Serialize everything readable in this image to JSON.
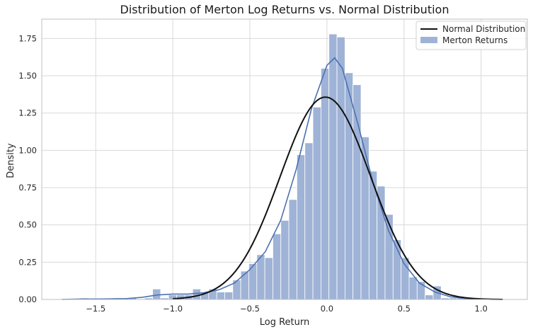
{
  "chart_data": {
    "type": "bar",
    "title": "Distribution of Merton Log Returns vs. Normal Distribution",
    "xlabel": "Log Return",
    "ylabel": "Density",
    "xlim": [
      -1.85,
      1.3
    ],
    "ylim": [
      0,
      1.88
    ],
    "grid": true,
    "xticks": [
      -1.5,
      -1.0,
      -0.5,
      0.0,
      0.5,
      1.0
    ],
    "xtick_labels": [
      "−1.5",
      "−1.0",
      "−0.5",
      "0.0",
      "0.5",
      "1.0"
    ],
    "yticks": [
      0.0,
      0.25,
      0.5,
      0.75,
      1.0,
      1.25,
      1.5,
      1.75
    ],
    "ytick_labels": [
      "0.00",
      "0.25",
      "0.50",
      "0.75",
      "1.00",
      "1.25",
      "1.50",
      "1.75"
    ],
    "legend": {
      "position": "top-right",
      "entries": [
        {
          "name": "Normal Distribution",
          "kind": "line",
          "color": "#111111"
        },
        {
          "name": "Merton Returns",
          "kind": "patch",
          "color": "#9fb3d7"
        }
      ]
    },
    "histogram": {
      "name": "Merton Returns",
      "color": "#9fb3d7",
      "bin_width": 0.052,
      "bins": [
        {
          "x": -1.573,
          "y": 0.01
        },
        {
          "x": -1.521,
          "y": 0.0
        },
        {
          "x": -1.469,
          "y": 0.0
        },
        {
          "x": -1.417,
          "y": 0.0
        },
        {
          "x": -1.365,
          "y": 0.01
        },
        {
          "x": -1.313,
          "y": 0.0
        },
        {
          "x": -1.261,
          "y": 0.01
        },
        {
          "x": -1.209,
          "y": 0.0
        },
        {
          "x": -1.157,
          "y": 0.01
        },
        {
          "x": -1.105,
          "y": 0.07
        },
        {
          "x": -1.053,
          "y": 0.01
        },
        {
          "x": -1.001,
          "y": 0.03
        },
        {
          "x": -0.949,
          "y": 0.03
        },
        {
          "x": -0.897,
          "y": 0.03
        },
        {
          "x": -0.845,
          "y": 0.07
        },
        {
          "x": -0.793,
          "y": 0.05
        },
        {
          "x": -0.741,
          "y": 0.07
        },
        {
          "x": -0.689,
          "y": 0.05
        },
        {
          "x": -0.637,
          "y": 0.05
        },
        {
          "x": -0.585,
          "y": 0.13
        },
        {
          "x": -0.533,
          "y": 0.19
        },
        {
          "x": -0.481,
          "y": 0.24
        },
        {
          "x": -0.429,
          "y": 0.3
        },
        {
          "x": -0.377,
          "y": 0.28
        },
        {
          "x": -0.325,
          "y": 0.44
        },
        {
          "x": -0.273,
          "y": 0.53
        },
        {
          "x": -0.221,
          "y": 0.67
        },
        {
          "x": -0.169,
          "y": 0.97
        },
        {
          "x": -0.117,
          "y": 1.05
        },
        {
          "x": -0.065,
          "y": 1.29
        },
        {
          "x": -0.013,
          "y": 1.55
        },
        {
          "x": 0.039,
          "y": 1.78
        },
        {
          "x": 0.091,
          "y": 1.76
        },
        {
          "x": 0.143,
          "y": 1.52
        },
        {
          "x": 0.195,
          "y": 1.44
        },
        {
          "x": 0.247,
          "y": 1.09
        },
        {
          "x": 0.299,
          "y": 0.86
        },
        {
          "x": 0.351,
          "y": 0.76
        },
        {
          "x": 0.403,
          "y": 0.57
        },
        {
          "x": 0.455,
          "y": 0.4
        },
        {
          "x": 0.507,
          "y": 0.28
        },
        {
          "x": 0.559,
          "y": 0.15
        },
        {
          "x": 0.611,
          "y": 0.12
        },
        {
          "x": 0.663,
          "y": 0.03
        },
        {
          "x": 0.715,
          "y": 0.09
        },
        {
          "x": 0.767,
          "y": 0.01
        },
        {
          "x": 0.819,
          "y": 0.01
        },
        {
          "x": 0.871,
          "y": 0.01
        }
      ]
    },
    "kde": {
      "color": "#4c72b0",
      "points": [
        [
          -1.72,
          0.0
        ],
        [
          -1.6,
          0.003
        ],
        [
          -1.5,
          0.003
        ],
        [
          -1.4,
          0.004
        ],
        [
          -1.3,
          0.006
        ],
        [
          -1.2,
          0.014
        ],
        [
          -1.1,
          0.03
        ],
        [
          -1.0,
          0.036
        ],
        [
          -0.9,
          0.036
        ],
        [
          -0.8,
          0.045
        ],
        [
          -0.7,
          0.065
        ],
        [
          -0.6,
          0.11
        ],
        [
          -0.5,
          0.2
        ],
        [
          -0.4,
          0.32
        ],
        [
          -0.3,
          0.53
        ],
        [
          -0.2,
          0.87
        ],
        [
          -0.1,
          1.28
        ],
        [
          0.0,
          1.57
        ],
        [
          0.05,
          1.62
        ],
        [
          0.1,
          1.55
        ],
        [
          0.2,
          1.18
        ],
        [
          0.3,
          0.78
        ],
        [
          0.4,
          0.46
        ],
        [
          0.5,
          0.24
        ],
        [
          0.6,
          0.11
        ],
        [
          0.7,
          0.05
        ],
        [
          0.8,
          0.018
        ],
        [
          0.9,
          0.006
        ],
        [
          1.0,
          0.002
        ],
        [
          1.14,
          0.0
        ]
      ]
    },
    "normal": {
      "name": "Normal Distribution",
      "color": "#111111",
      "mean": -0.01,
      "std": 0.294,
      "x_range": [
        -1.0,
        1.14
      ]
    }
  }
}
